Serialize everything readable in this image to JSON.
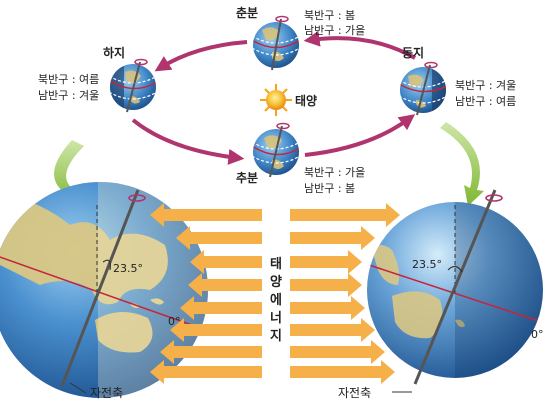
{
  "seasons": {
    "spring": {
      "name": "춘분",
      "north": "북반구 : 봄",
      "south": "남반구 : 가을"
    },
    "summer": {
      "name": "하지",
      "north": "북반구 : 여름",
      "south": "남반구 : 겨울"
    },
    "winter": {
      "name": "동지",
      "north": "북반구 : 겨울",
      "south": "남반구 : 여름"
    },
    "autumn": {
      "name": "추분",
      "north": "북반구 : 가을",
      "south": "남반구 : 봄"
    }
  },
  "sun_label": "태양",
  "solar_energy": [
    "태",
    "양",
    "에",
    "너",
    "지"
  ],
  "left_globe": {
    "tilt_label": "23.5°",
    "equator_label": "0°",
    "axis_label": "자전축"
  },
  "right_globe": {
    "tilt_label": "23.5°",
    "equator_label": "0°",
    "axis_label": "자전축"
  },
  "colors": {
    "orbit_arrow": "#b0346e",
    "energy_arrow": "#f5b04a",
    "down_arrow": "#8bbf3d",
    "ocean": "#3f86c8",
    "sun": "#f6a21b",
    "equator": "#c4263c"
  }
}
